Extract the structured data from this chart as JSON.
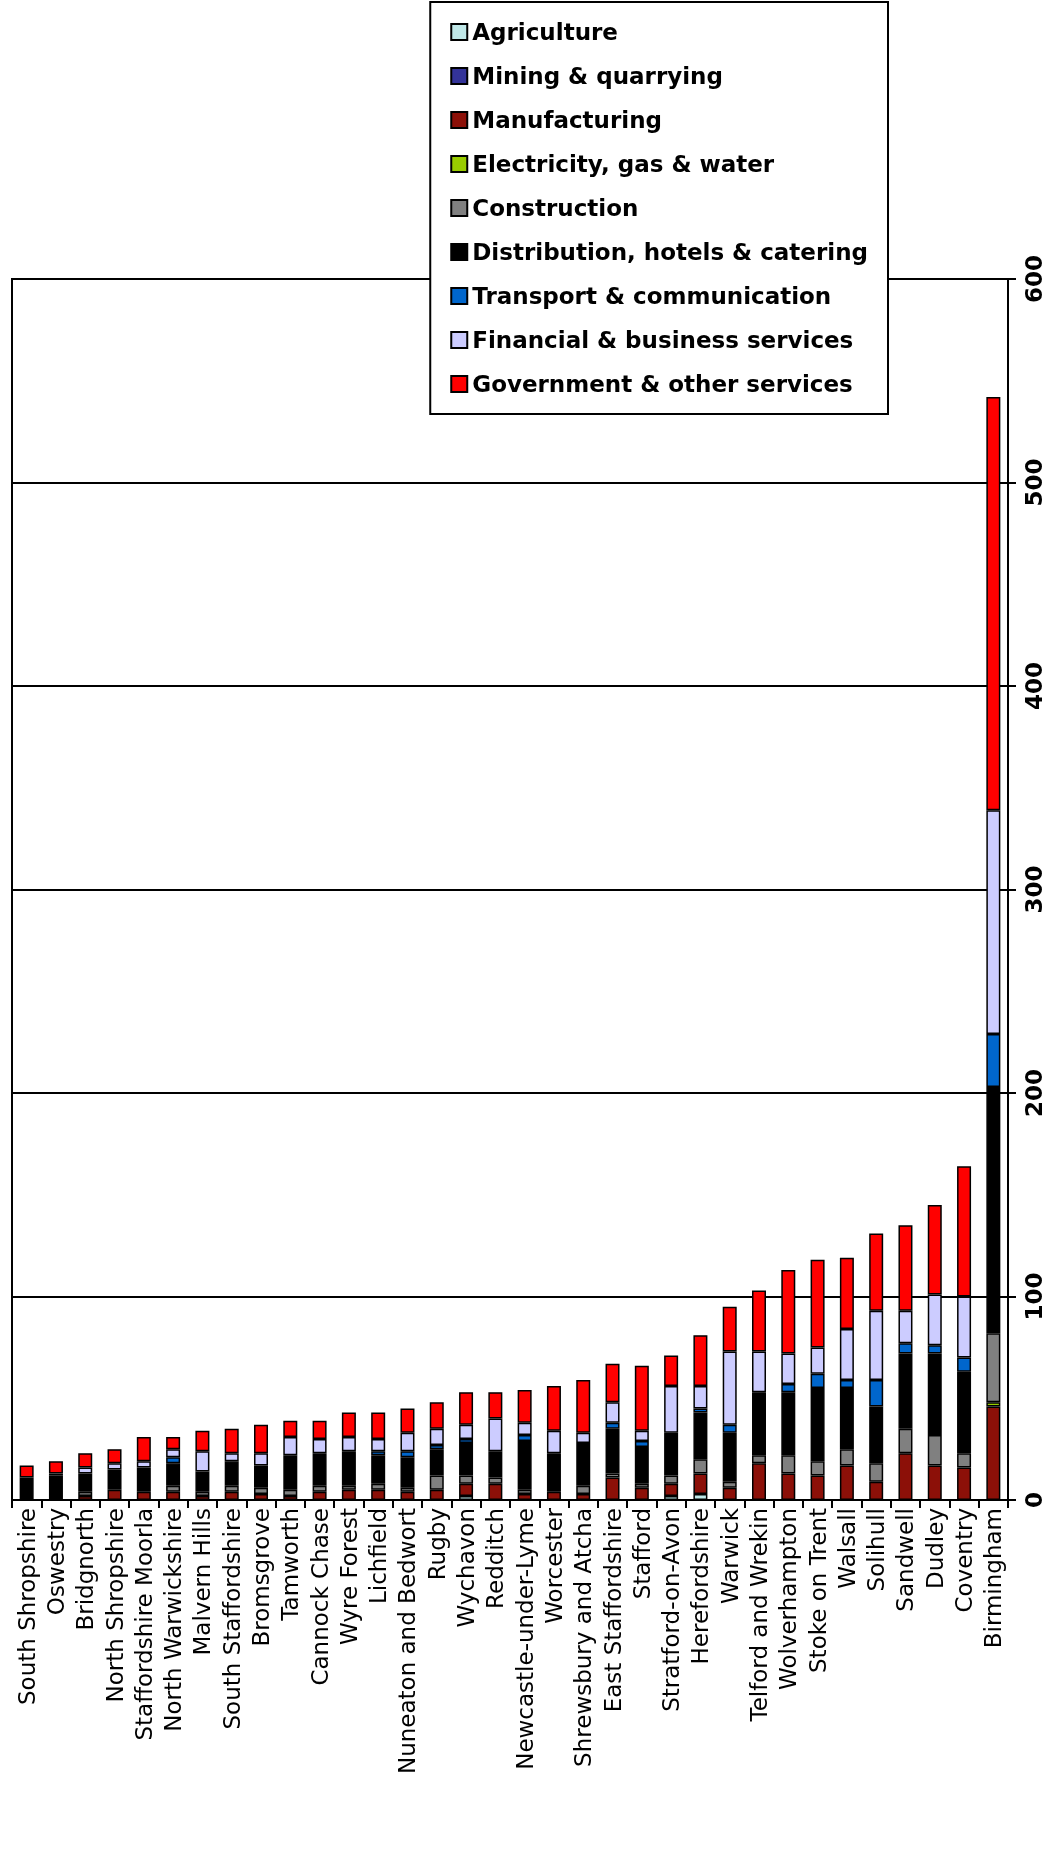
{
  "chart_data": {
    "type": "bar",
    "stacked": true,
    "categories": [
      "South Shropshire",
      "Oswestry",
      "Bridgnorth",
      "North Shropshire",
      "Staffordshire Moorla",
      "North Warwickshire",
      "Malvern Hills",
      "South Staffordshire",
      "Bromsgrove",
      "Tamworth",
      "Cannock Chase",
      "Wyre Forest",
      "Lichfield",
      "Nuneaton and Bedwort",
      "Rugby",
      "Wychavon",
      "Redditch",
      "Newcastle-under-Lyme",
      "Worcester",
      "Shrewsbury and Atcha",
      "East Staffordshire",
      "Stafford",
      "Stratford-on-Avon",
      "Herefordshire",
      "Warwick",
      "Telford and Wrekin",
      "Wolverhampton",
      "Stoke on Trent",
      "Walsall",
      "Solihull",
      "Sandwell",
      "Dudley",
      "Coventry",
      "Birmingham"
    ],
    "series": [
      {
        "name": "Agriculture",
        "color": "#c0e8e8",
        "values": [
          0,
          0,
          0,
          0,
          0,
          0,
          0,
          0,
          0,
          0,
          0,
          0,
          0,
          0,
          0,
          2,
          0,
          0,
          0,
          0,
          0,
          0,
          2,
          3,
          0,
          0,
          0,
          0,
          0,
          0,
          0,
          0,
          0,
          0
        ]
      },
      {
        "name": "Mining & quarrying",
        "color": "#333399",
        "values": [
          0,
          0,
          0,
          0,
          0,
          0,
          0,
          0,
          0,
          0,
          0,
          0,
          0,
          0,
          0,
          0,
          0,
          0,
          0,
          0,
          0,
          0,
          0,
          0,
          0,
          0,
          0,
          0,
          0,
          0,
          0,
          0,
          0,
          0
        ]
      },
      {
        "name": "Manufacturing",
        "color": "#8c1008",
        "values": [
          1,
          1,
          2,
          5,
          4,
          4,
          2,
          4,
          3,
          2,
          4,
          5,
          5,
          4,
          5,
          6,
          8,
          3,
          4,
          3,
          11,
          6,
          6,
          10,
          6,
          18,
          13,
          12,
          17,
          9,
          23,
          17,
          16,
          46
        ]
      },
      {
        "name": "Electricity, gas & water",
        "color": "#99cc00",
        "values": [
          0,
          0,
          0,
          0,
          0,
          0,
          0,
          0,
          0,
          0,
          0,
          0,
          0,
          0,
          0,
          0,
          0,
          0,
          0,
          0,
          0,
          0,
          0,
          0,
          0,
          0,
          0,
          0,
          0,
          0,
          0,
          0,
          0,
          2
        ]
      },
      {
        "name": "Construction",
        "color": "#808080",
        "values": [
          0,
          0,
          2,
          0,
          0,
          3,
          2,
          3,
          3,
          3,
          3,
          2,
          3,
          2,
          7,
          4,
          3,
          2,
          0,
          4,
          2,
          2,
          4,
          7,
          3,
          4,
          9,
          7,
          8,
          9,
          12,
          15,
          7,
          34
        ]
      },
      {
        "name": "Distribution, hotels & catering",
        "color": "#000000",
        "values": [
          10,
          11,
          9,
          10,
          12,
          11,
          10,
          12,
          11,
          17,
          16,
          17,
          14,
          15,
          13,
          16,
          13,
          24,
          19,
          21,
          22,
          18,
          21,
          23,
          24,
          31,
          31,
          36,
          30,
          28,
          37,
          40,
          40,
          121
        ]
      },
      {
        "name": "Transport & communication",
        "color": "#0066cc",
        "values": [
          0,
          0,
          0,
          0,
          0,
          3,
          0,
          0,
          0,
          0,
          0,
          0,
          2,
          3,
          2,
          2,
          0,
          3,
          0,
          0,
          3,
          3,
          0,
          2,
          4,
          0,
          4,
          7,
          4,
          13,
          5,
          4,
          7,
          26
        ]
      },
      {
        "name": "Financial & business services",
        "color": "#ccccff",
        "values": [
          0,
          1,
          3,
          3,
          3,
          4,
          10,
          4,
          6,
          9,
          7,
          7,
          6,
          9,
          8,
          7,
          16,
          6,
          11,
          5,
          10,
          5,
          23,
          11,
          36,
          20,
          15,
          13,
          25,
          34,
          16,
          25,
          30,
          110
        ]
      },
      {
        "name": "Government & other services",
        "color": "#ff0000",
        "values": [
          6,
          6,
          7,
          7,
          12,
          6,
          10,
          12,
          14,
          8,
          9,
          12,
          13,
          12,
          13,
          16,
          13,
          16,
          22,
          26,
          19,
          32,
          15,
          25,
          22,
          30,
          41,
          43,
          35,
          38,
          42,
          44,
          64,
          203
        ]
      }
    ],
    "ylim": [
      0,
      600
    ],
    "yticks": [
      0,
      100,
      200,
      300,
      400,
      500,
      600
    ],
    "grid": "y",
    "legend": "top right"
  }
}
